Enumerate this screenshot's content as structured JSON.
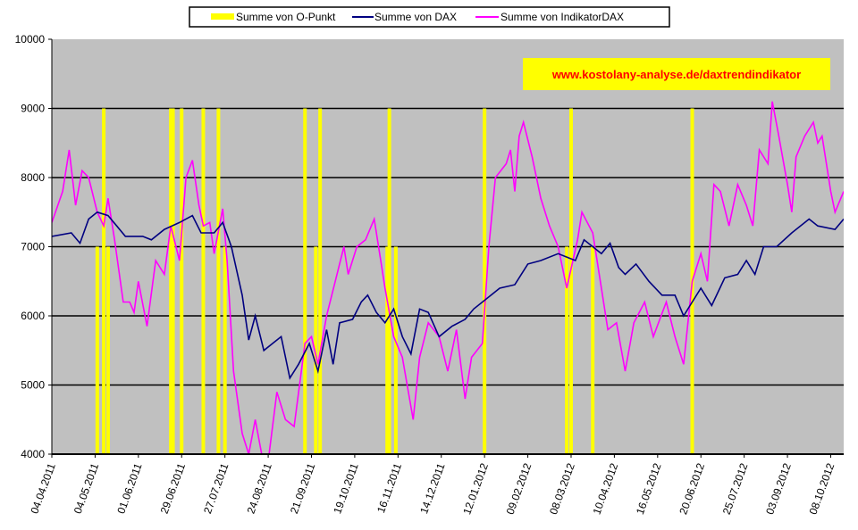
{
  "chart_data": {
    "type": "line",
    "ylim": [
      4000,
      10000
    ],
    "yticks": [
      4000,
      5000,
      6000,
      7000,
      8000,
      9000,
      10000
    ],
    "grid": true,
    "legend_position": "top",
    "annotation": "www.kostolany-analyse.de/daxtrendindikator",
    "x_unit": "trading day index",
    "x_max": 366,
    "xtick_labels": [
      "04.04.2011",
      "04.05.2011",
      "01.06.2011",
      "29.06.2011",
      "27.07.2011",
      "24.08.2011",
      "21.09.2011",
      "19.10.2011",
      "16.11.2011",
      "14.12.2011",
      "12.01.2012",
      "09.02.2012",
      "08.03.2012",
      "10.04.2012",
      "16.05.2012",
      "20.06.2012",
      "25.07.2012",
      "03.09.2012",
      "08.10.2012"
    ],
    "xtick_step": 20,
    "colors": {
      "plot_bg": "#c0c0c0",
      "o_punkt": "#ffff00",
      "dax": "#000080",
      "indikator": "#ff00ff",
      "annotation_bg": "#ffff00",
      "annotation_text": "#ff0000"
    },
    "series": [
      {
        "name": "Summe von O-Punkt",
        "kind": "bar",
        "points": [
          [
            21,
            7000
          ],
          [
            24,
            9000
          ],
          [
            26,
            7000
          ],
          [
            55,
            9000
          ],
          [
            56,
            9000
          ],
          [
            60,
            9000
          ],
          [
            70,
            9000
          ],
          [
            77,
            9000
          ],
          [
            80,
            7000
          ],
          [
            117,
            9000
          ],
          [
            122,
            7000
          ],
          [
            124,
            9000
          ],
          [
            155,
            7000
          ],
          [
            156,
            9000
          ],
          [
            159,
            7000
          ],
          [
            200,
            9000
          ],
          [
            238,
            7000
          ],
          [
            240,
            9000
          ],
          [
            250,
            7000
          ],
          [
            296,
            9000
          ]
        ]
      },
      {
        "name": "Summe von DAX",
        "kind": "line",
        "points": [
          [
            0,
            7150
          ],
          [
            9,
            7200
          ],
          [
            13,
            7050
          ],
          [
            17,
            7400
          ],
          [
            21,
            7500
          ],
          [
            26,
            7450
          ],
          [
            30,
            7300
          ],
          [
            34,
            7150
          ],
          [
            42,
            7150
          ],
          [
            46,
            7100
          ],
          [
            52,
            7250
          ],
          [
            59,
            7350
          ],
          [
            65,
            7450
          ],
          [
            69,
            7200
          ],
          [
            75,
            7200
          ],
          [
            79,
            7350
          ],
          [
            83,
            7000
          ],
          [
            88,
            6300
          ],
          [
            91,
            5650
          ],
          [
            94,
            6000
          ],
          [
            98,
            5500
          ],
          [
            102,
            5600
          ],
          [
            106,
            5700
          ],
          [
            110,
            5100
          ],
          [
            114,
            5300
          ],
          [
            119,
            5600
          ],
          [
            123,
            5200
          ],
          [
            127,
            5800
          ],
          [
            130,
            5300
          ],
          [
            133,
            5900
          ],
          [
            139,
            5950
          ],
          [
            143,
            6200
          ],
          [
            146,
            6300
          ],
          [
            150,
            6050
          ],
          [
            154,
            5900
          ],
          [
            158,
            6100
          ],
          [
            162,
            5700
          ],
          [
            166,
            5450
          ],
          [
            170,
            6100
          ],
          [
            174,
            6050
          ],
          [
            179,
            5700
          ],
          [
            185,
            5850
          ],
          [
            191,
            5950
          ],
          [
            195,
            6100
          ],
          [
            201,
            6250
          ],
          [
            207,
            6400
          ],
          [
            214,
            6450
          ],
          [
            220,
            6750
          ],
          [
            226,
            6800
          ],
          [
            234,
            6900
          ],
          [
            242,
            6800
          ],
          [
            246,
            7100
          ],
          [
            250,
            7000
          ],
          [
            254,
            6900
          ],
          [
            258,
            7050
          ],
          [
            262,
            6700
          ],
          [
            265,
            6600
          ],
          [
            270,
            6750
          ],
          [
            276,
            6500
          ],
          [
            282,
            6300
          ],
          [
            288,
            6300
          ],
          [
            292,
            6000
          ],
          [
            296,
            6200
          ],
          [
            300,
            6400
          ],
          [
            305,
            6150
          ],
          [
            311,
            6550
          ],
          [
            317,
            6600
          ],
          [
            321,
            6800
          ],
          [
            325,
            6600
          ],
          [
            329,
            7000
          ],
          [
            335,
            7000
          ],
          [
            342,
            7200
          ],
          [
            350,
            7400
          ],
          [
            354,
            7300
          ],
          [
            362,
            7250
          ],
          [
            366,
            7400
          ]
        ]
      },
      {
        "name": "Summe von IndikatorDAX",
        "kind": "line",
        "points": [
          [
            0,
            7350
          ],
          [
            5,
            7800
          ],
          [
            8,
            8400
          ],
          [
            11,
            7600
          ],
          [
            14,
            8100
          ],
          [
            17,
            8000
          ],
          [
            21,
            7500
          ],
          [
            24,
            7300
          ],
          [
            26,
            7700
          ],
          [
            29,
            7100
          ],
          [
            33,
            6200
          ],
          [
            36,
            6200
          ],
          [
            38,
            6050
          ],
          [
            40,
            6500
          ],
          [
            44,
            5850
          ],
          [
            48,
            6800
          ],
          [
            52,
            6600
          ],
          [
            55,
            7300
          ],
          [
            59,
            6800
          ],
          [
            62,
            8000
          ],
          [
            65,
            8250
          ],
          [
            68,
            7600
          ],
          [
            70,
            7300
          ],
          [
            73,
            7350
          ],
          [
            75,
            6900
          ],
          [
            79,
            7550
          ],
          [
            81,
            6800
          ],
          [
            84,
            5200
          ],
          [
            88,
            4300
          ],
          [
            91,
            4000
          ],
          [
            94,
            4500
          ],
          [
            97,
            4000
          ],
          [
            100,
            3900
          ],
          [
            104,
            4900
          ],
          [
            108,
            4500
          ],
          [
            112,
            4400
          ],
          [
            117,
            5600
          ],
          [
            120,
            5700
          ],
          [
            123,
            5300
          ],
          [
            127,
            6000
          ],
          [
            131,
            6500
          ],
          [
            135,
            7000
          ],
          [
            137,
            6600
          ],
          [
            141,
            7000
          ],
          [
            145,
            7100
          ],
          [
            149,
            7400
          ],
          [
            152,
            6800
          ],
          [
            154,
            6400
          ],
          [
            158,
            5700
          ],
          [
            162,
            5400
          ],
          [
            167,
            4500
          ],
          [
            170,
            5400
          ],
          [
            174,
            5900
          ],
          [
            179,
            5700
          ],
          [
            183,
            5200
          ],
          [
            187,
            5800
          ],
          [
            191,
            4800
          ],
          [
            194,
            5400
          ],
          [
            199,
            5600
          ],
          [
            202,
            7000
          ],
          [
            205,
            8000
          ],
          [
            210,
            8200
          ],
          [
            212,
            8400
          ],
          [
            214,
            7800
          ],
          [
            216,
            8600
          ],
          [
            218,
            8800
          ],
          [
            222,
            8300
          ],
          [
            226,
            7700
          ],
          [
            230,
            7300
          ],
          [
            234,
            7000
          ],
          [
            238,
            6400
          ],
          [
            243,
            7100
          ],
          [
            245,
            7500
          ],
          [
            250,
            7200
          ],
          [
            254,
            6400
          ],
          [
            257,
            5800
          ],
          [
            261,
            5900
          ],
          [
            265,
            5200
          ],
          [
            269,
            5900
          ],
          [
            274,
            6200
          ],
          [
            278,
            5700
          ],
          [
            284,
            6200
          ],
          [
            288,
            5700
          ],
          [
            292,
            5300
          ],
          [
            296,
            6500
          ],
          [
            300,
            6900
          ],
          [
            303,
            6500
          ],
          [
            306,
            7900
          ],
          [
            309,
            7800
          ],
          [
            313,
            7300
          ],
          [
            317,
            7900
          ],
          [
            321,
            7600
          ],
          [
            324,
            7300
          ],
          [
            327,
            8400
          ],
          [
            331,
            8200
          ],
          [
            333,
            9100
          ],
          [
            336,
            8600
          ],
          [
            340,
            7900
          ],
          [
            342,
            7500
          ],
          [
            344,
            8300
          ],
          [
            348,
            8600
          ],
          [
            352,
            8800
          ],
          [
            354,
            8500
          ],
          [
            356,
            8600
          ],
          [
            360,
            7800
          ],
          [
            362,
            7500
          ],
          [
            366,
            7800
          ]
        ]
      }
    ]
  }
}
